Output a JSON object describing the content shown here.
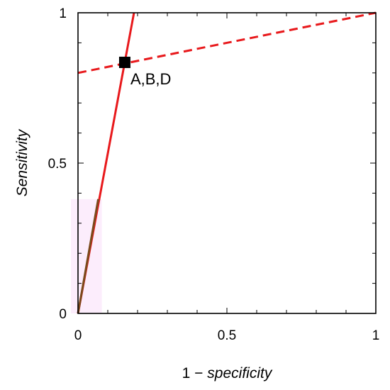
{
  "chart_data": {
    "type": "line",
    "xlabel_prefix": "1 − ",
    "xlabel_italic": "specificity",
    "ylabel": "Sensitivity",
    "xlim": [
      0,
      1
    ],
    "ylim": [
      0,
      1
    ],
    "x_ticks": [
      {
        "value": 0,
        "label": "0"
      },
      {
        "value": 0.5,
        "label": "0.5"
      },
      {
        "value": 1,
        "label": "1"
      }
    ],
    "y_ticks": [
      {
        "value": 0,
        "label": "0"
      },
      {
        "value": 0.5,
        "label": "0.5"
      },
      {
        "value": 1,
        "label": "1"
      }
    ],
    "minor_tick_step": 0.1,
    "grid": false,
    "series": [
      {
        "style": "solid",
        "color": "#e8191c",
        "x": [
          0,
          0.188
        ],
        "y": [
          0,
          1
        ]
      },
      {
        "style": "dashed",
        "color": "#e8191c",
        "x": [
          0,
          1
        ],
        "y": [
          0.8,
          1
        ]
      },
      {
        "style": "solid",
        "color": "#7a4a1c",
        "x": [
          0,
          0.068
        ],
        "y": [
          0,
          0.38
        ]
      }
    ],
    "shading": {
      "color": "#fbe6fb",
      "x": [
        0,
        0.08
      ],
      "y": [
        0,
        0.38
      ]
    },
    "points": [
      {
        "x": 0.157,
        "y": 0.835,
        "label": "A,B,D",
        "marker": "square",
        "color": "#000000"
      }
    ]
  }
}
